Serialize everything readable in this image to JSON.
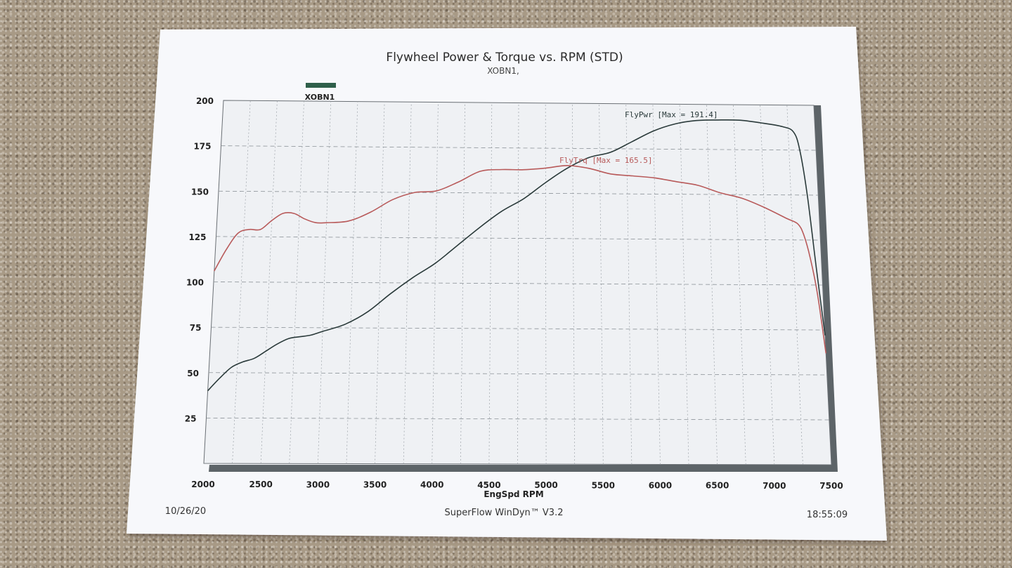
{
  "header": {
    "title": "Flywheel Power & Torque vs. RPM (STD)",
    "subtitle": "XOBN1,"
  },
  "legend": {
    "label": "XOBN1",
    "color": "#2f5f4a"
  },
  "footer": {
    "date": "10/26/20",
    "software": "SuperFlow WinDyn™ V3.2",
    "time": "18:55:09"
  },
  "chart_data": {
    "type": "line",
    "title": "Flywheel Power & Torque vs. RPM (STD)",
    "subtitle": "XOBN1,",
    "xlabel": "EngSpd RPM",
    "ylabel": "",
    "xlim": [
      2000,
      7500
    ],
    "ylim": [
      0,
      200
    ],
    "x_ticks": [
      "2000",
      "2500",
      "3000",
      "3500",
      "4000",
      "4500",
      "5000",
      "5500",
      "6000",
      "6500",
      "7000",
      "7500"
    ],
    "y_ticks": [
      "25",
      "50",
      "75",
      "100",
      "125",
      "150",
      "175",
      "200"
    ],
    "grid": true,
    "legend": "top-left",
    "series": [
      {
        "name": "FlyPwr",
        "annotation": "FlyPwr [Max = 191.4]",
        "color": "#2a3a3a",
        "x": [
          2000,
          2100,
          2200,
          2300,
          2400,
          2500,
          2600,
          2700,
          2800,
          2900,
          3000,
          3200,
          3400,
          3600,
          3800,
          4000,
          4200,
          4400,
          4600,
          4800,
          5000,
          5200,
          5400,
          5600,
          5800,
          6000,
          6200,
          6400,
          6600,
          6800,
          7000,
          7200,
          7300,
          7350,
          7400,
          7450,
          7500
        ],
        "values": [
          40,
          47,
          53,
          56,
          58,
          62,
          66,
          69,
          70,
          71,
          73,
          77,
          84,
          94,
          103,
          111,
          121,
          131,
          140,
          147,
          156,
          164,
          170,
          173,
          179,
          185,
          189,
          191,
          191.4,
          191.4,
          190,
          188,
          185,
          175,
          150,
          110,
          72
        ]
      },
      {
        "name": "FlyTrq",
        "annotation": "FlyTrq [Max = 165.5]",
        "color": "#b85a5a",
        "x": [
          2000,
          2100,
          2200,
          2300,
          2400,
          2500,
          2600,
          2700,
          2800,
          2900,
          3000,
          3200,
          3400,
          3600,
          3800,
          4000,
          4200,
          4400,
          4600,
          4800,
          5000,
          5200,
          5400,
          5600,
          5800,
          6000,
          6200,
          6400,
          6600,
          6800,
          7000,
          7200,
          7300,
          7350,
          7400,
          7450,
          7500
        ],
        "values": [
          106,
          118,
          127,
          129,
          129,
          134,
          138,
          138,
          135,
          133,
          133,
          134,
          139,
          146,
          150,
          151,
          156,
          162,
          163,
          163,
          164,
          165.5,
          164,
          161,
          160,
          159,
          157,
          155,
          151,
          148,
          143,
          137,
          134,
          128,
          115,
          95,
          62
        ]
      }
    ]
  }
}
